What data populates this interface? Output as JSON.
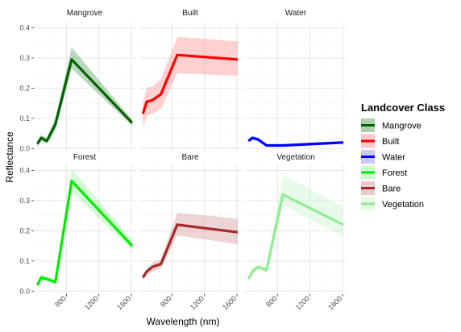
{
  "chart_data": {
    "type": "line",
    "xlabel": "Wavelength (nm)",
    "ylabel": "Reflectance",
    "xlim": [
      400,
      1650
    ],
    "ylim": [
      -0.01,
      0.42
    ],
    "x_ticks": [
      800,
      1200,
      1600
    ],
    "y_ticks": [
      0.0,
      0.1,
      0.2,
      0.3,
      0.4
    ],
    "y_tick_labels": [
      "0.0",
      "0.1",
      "0.2",
      "0.3",
      "0.4"
    ],
    "grid": true,
    "legend": {
      "title": "Landcover Class",
      "position": "right",
      "entries": [
        "Mangrove",
        "Built",
        "Water",
        "Forest",
        "Bare",
        "Vegetation"
      ]
    },
    "panels": [
      {
        "name": "Mangrove",
        "color": "#006400",
        "fill": "#6aa86a",
        "x": [
          443,
          490,
          560,
          665,
          865,
          1610
        ],
        "y": [
          0.015,
          0.035,
          0.025,
          0.08,
          0.295,
          0.085
        ],
        "lower": [
          0.005,
          0.025,
          0.015,
          0.06,
          0.265,
          0.075
        ],
        "upper": [
          0.025,
          0.045,
          0.035,
          0.1,
          0.335,
          0.095
        ]
      },
      {
        "name": "Built",
        "color": "#ff0000",
        "fill": "#ff9a9a",
        "x": [
          443,
          490,
          560,
          665,
          865,
          1610
        ],
        "y": [
          0.115,
          0.155,
          0.16,
          0.18,
          0.31,
          0.295
        ],
        "lower": [
          0.065,
          0.11,
          0.115,
          0.13,
          0.25,
          0.24
        ],
        "upper": [
          0.155,
          0.2,
          0.205,
          0.23,
          0.37,
          0.355
        ]
      },
      {
        "name": "Water",
        "color": "#0000ff",
        "fill": "#9a9aff",
        "x": [
          443,
          490,
          560,
          665,
          865,
          1610
        ],
        "y": [
          0.025,
          0.035,
          0.03,
          0.01,
          0.01,
          0.02
        ],
        "lower": [
          0.018,
          0.028,
          0.022,
          0.005,
          0.005,
          0.015
        ],
        "upper": [
          0.032,
          0.042,
          0.038,
          0.015,
          0.015,
          0.025
        ]
      },
      {
        "name": "Forest",
        "color": "#00ee00",
        "fill": "#a3f5a3",
        "x": [
          443,
          490,
          560,
          665,
          865,
          1610
        ],
        "y": [
          0.02,
          0.045,
          0.04,
          0.03,
          0.365,
          0.15
        ],
        "lower": [
          0.012,
          0.035,
          0.03,
          0.022,
          0.33,
          0.135
        ],
        "upper": [
          0.028,
          0.055,
          0.05,
          0.04,
          0.405,
          0.17
        ]
      },
      {
        "name": "Bare",
        "color": "#a52a2a",
        "fill": "#d9a0a0",
        "x": [
          443,
          490,
          560,
          665,
          865,
          1610
        ],
        "y": [
          0.045,
          0.065,
          0.08,
          0.09,
          0.22,
          0.195
        ],
        "lower": [
          0.035,
          0.055,
          0.065,
          0.075,
          0.185,
          0.155
        ],
        "upper": [
          0.055,
          0.075,
          0.095,
          0.105,
          0.26,
          0.24
        ]
      },
      {
        "name": "Vegetation",
        "color": "#90ee90",
        "fill": "#d0f5d0",
        "x": [
          443,
          490,
          560,
          665,
          865,
          1610
        ],
        "y": [
          0.04,
          0.065,
          0.08,
          0.07,
          0.32,
          0.22
        ],
        "lower": [
          0.03,
          0.055,
          0.07,
          0.06,
          0.285,
          0.18
        ],
        "upper": [
          0.05,
          0.075,
          0.09,
          0.08,
          0.385,
          0.28
        ]
      }
    ]
  }
}
